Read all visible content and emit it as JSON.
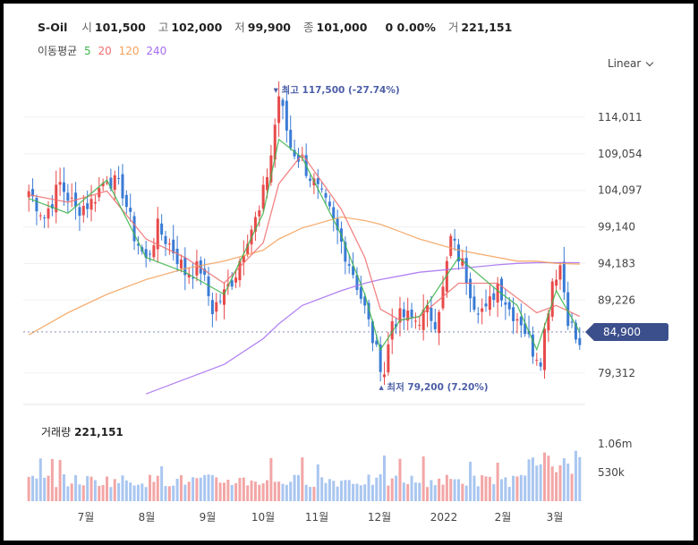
{
  "header": {
    "name": "S-Oil",
    "open_label": "시",
    "open": "101,500",
    "high_label": "고",
    "high": "102,000",
    "low_label": "저",
    "low": "99,900",
    "close_label": "종",
    "close": "101,000",
    "change": "0",
    "change_pct": "0.00%",
    "volume_label": "거",
    "volume": "221,151"
  },
  "ma_legend": {
    "title": "이동평균",
    "items": [
      {
        "label": "5",
        "color": "#3cb44b"
      },
      {
        "label": "20",
        "color": "#f06e6e"
      },
      {
        "label": "120",
        "color": "#f5a15a"
      },
      {
        "label": "240",
        "color": "#a56cf0"
      }
    ]
  },
  "scale_selector": {
    "label": "Linear"
  },
  "chart_data": {
    "type": "candlestick",
    "y_ticks": [
      "114,011",
      "109,054",
      "104,097",
      "99,140",
      "94,183",
      "89,226",
      "79,312"
    ],
    "y_tick_values": [
      114011,
      109054,
      104097,
      99140,
      94183,
      89226,
      79312
    ],
    "ylim": [
      78000,
      122000
    ],
    "x_ticks": [
      "7월",
      "8월",
      "9월",
      "10월",
      "11월",
      "12월",
      "2022",
      "2월",
      "3월"
    ],
    "current_price": {
      "label": "84,900",
      "value": 84900
    },
    "annotations": {
      "high": {
        "label": "최고",
        "value": "117,500",
        "pct": "(-27.74%)",
        "color": "#4c5ea7"
      },
      "low": {
        "label": "최저",
        "value": "79,200",
        "pct": "(7.20%)",
        "color": "#4c5ea7"
      }
    },
    "anchors": [
      [
        0,
        104000
      ],
      [
        4,
        100500
      ],
      [
        8,
        105000
      ],
      [
        12,
        101500
      ],
      [
        16,
        102500
      ],
      [
        20,
        106000
      ],
      [
        24,
        104000
      ],
      [
        27,
        98000
      ],
      [
        30,
        94500
      ],
      [
        33,
        99000
      ],
      [
        37,
        96000
      ],
      [
        40,
        93000
      ],
      [
        44,
        93500
      ],
      [
        47,
        88000
      ],
      [
        50,
        90000
      ],
      [
        53,
        93000
      ],
      [
        56,
        98000
      ],
      [
        59,
        101000
      ],
      [
        62,
        109000
      ],
      [
        64,
        117000
      ],
      [
        67,
        110000
      ],
      [
        70,
        108000
      ],
      [
        74,
        104000
      ],
      [
        77,
        101000
      ],
      [
        80,
        97000
      ],
      [
        83,
        93000
      ],
      [
        86,
        88000
      ],
      [
        89,
        82000
      ],
      [
        91,
        79500
      ],
      [
        93,
        86500
      ],
      [
        96,
        87000
      ],
      [
        99,
        86500
      ],
      [
        102,
        87500
      ],
      [
        104,
        86500
      ],
      [
        106,
        90500
      ],
      [
        108,
        97500
      ],
      [
        111,
        94000
      ],
      [
        114,
        89000
      ],
      [
        117,
        87500
      ],
      [
        120,
        91500
      ],
      [
        123,
        88000
      ],
      [
        126,
        86500
      ],
      [
        129,
        82500
      ],
      [
        131,
        81500
      ],
      [
        134,
        92000
      ],
      [
        136,
        94000
      ],
      [
        138,
        87000
      ],
      [
        141,
        82500
      ]
    ],
    "ma_sample_x": [
      0,
      10,
      20,
      30,
      40,
      50,
      60,
      64,
      70,
      80,
      86,
      90,
      95,
      100,
      110,
      120,
      125,
      130,
      135,
      141
    ],
    "ma5": [
      103000,
      101000,
      105500,
      95000,
      93000,
      90000,
      101000,
      111000,
      108500,
      98000,
      90000,
      82500,
      86500,
      87000,
      95000,
      90500,
      88500,
      82500,
      90500,
      84900
    ],
    "ma20": [
      103500,
      102500,
      104000,
      97500,
      95000,
      91500,
      97000,
      105000,
      109000,
      101500,
      95000,
      88000,
      86500,
      87000,
      91500,
      91500,
      89500,
      87500,
      88500,
      87000
    ],
    "ma120": [
      84500,
      87500,
      90000,
      92000,
      93500,
      94500,
      96000,
      97500,
      99000,
      100500,
      100000,
      99500,
      98500,
      97500,
      96000,
      95000,
      94500,
      94500,
      94200,
      94100
    ],
    "ma240": [
      0,
      0,
      0,
      76500,
      78500,
      80500,
      84000,
      86000,
      88500,
      90500,
      91500,
      92000,
      92500,
      93000,
      93500,
      94000,
      94200,
      94300,
      94300,
      94300
    ],
    "volume_ticks": [
      "1.06m",
      "530k"
    ],
    "volume_tick_values": [
      1060000,
      530000
    ]
  },
  "volume_panel": {
    "title": "거래량",
    "value": "221,151"
  },
  "colors": {
    "up": "#e84a4a",
    "down": "#3a7bd5",
    "up_vol": "#f3a6a6",
    "down_vol": "#a9c6f0",
    "ma5": "#3cb44b",
    "ma20": "#f06e6e",
    "ma120": "#f5a15a",
    "ma240": "#a56cf0",
    "current_tag": "#3b4f8c"
  }
}
